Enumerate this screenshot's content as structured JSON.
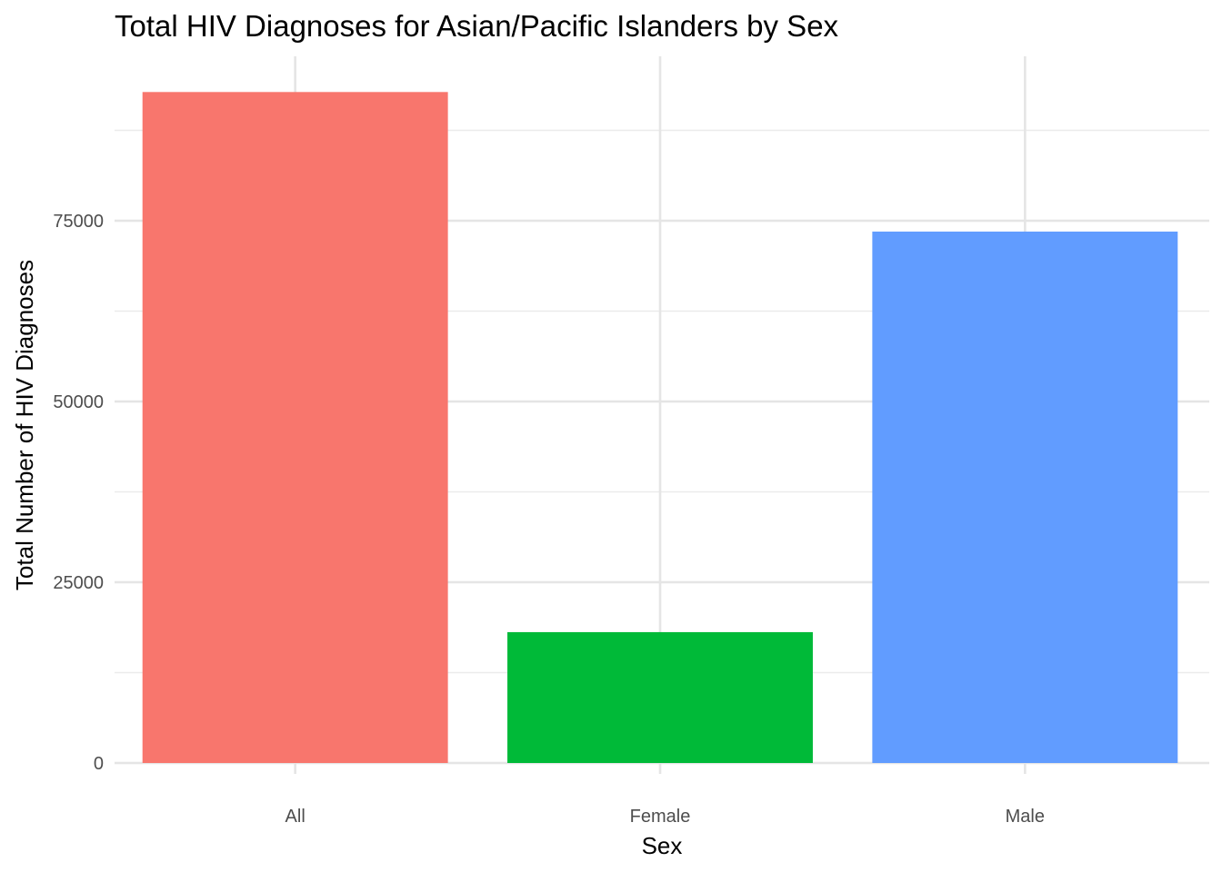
{
  "chart_data": {
    "type": "bar",
    "title": "Total HIV Diagnoses for Asian/Pacific Islanders by Sex",
    "xlabel": "Sex",
    "ylabel": "Total Number of HIV Diagnoses",
    "categories": [
      "All",
      "Female",
      "Male"
    ],
    "values": [
      92800,
      18100,
      73500
    ],
    "colors": [
      "#F8766D",
      "#00BA38",
      "#619CFF"
    ],
    "ylim": [
      0,
      97000
    ],
    "yticks": [
      0,
      25000,
      50000,
      75000
    ],
    "ytick_labels": [
      "0",
      "25000",
      "50000",
      "75000"
    ],
    "minor_yticks": [
      12500,
      37500,
      62500,
      87500
    ],
    "grid": true,
    "legend": "none"
  }
}
